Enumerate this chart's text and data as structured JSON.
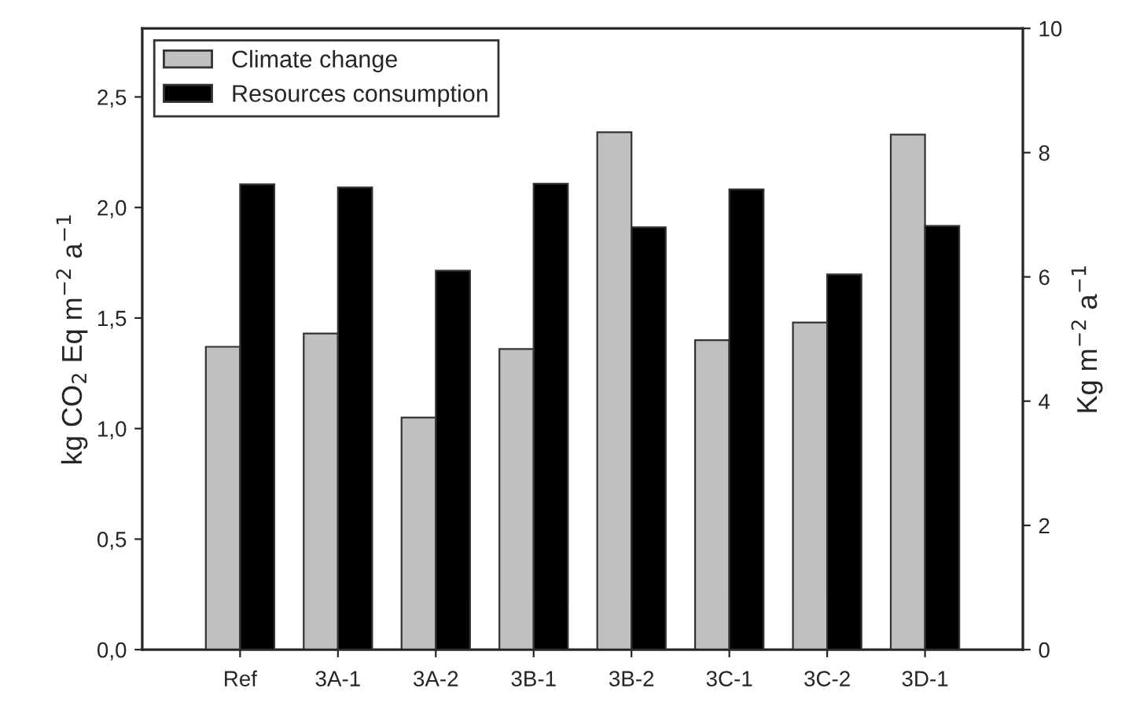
{
  "chart_data": {
    "type": "bar",
    "categories": [
      "Ref",
      "3A-1",
      "3A-2",
      "3B-1",
      "3B-2",
      "3C-1",
      "3C-2",
      "3D-1"
    ],
    "ylabel": "kg CO$_{2}$ Eq m$^{−2}$ a$^{−1}$",
    "y2label": "Kg m$^{−2}$ a$^{−1}$",
    "series": [
      {
        "name": "Climate change",
        "color": "#c0c0c0",
        "values": [
          1.37,
          1.43,
          1.05,
          1.36,
          2.34,
          1.4,
          1.48,
          2.33
        ]
      },
      {
        "name": "Resources consumption",
        "color": "#000000",
        "axis": "y2",
        "values": [
          7.49,
          7.44,
          6.1,
          7.5,
          6.8,
          7.41,
          6.04,
          6.82
        ]
      }
    ],
    "ylim": [
      0,
      2.81
    ],
    "yticks": [
      {
        "value": 0,
        "label": "0,0"
      },
      {
        "value": 0.5,
        "label": "0,5"
      },
      {
        "value": 1,
        "label": "1,0"
      },
      {
        "value": 1.5,
        "label": "1,5"
      },
      {
        "value": 2,
        "label": "2,0"
      },
      {
        "value": 2.5,
        "label": "2,5"
      }
    ],
    "y2lim": [
      0,
      10
    ],
    "y2ticks": [
      0,
      2,
      4,
      6,
      8,
      10
    ],
    "grid": false,
    "legend": "top left"
  }
}
